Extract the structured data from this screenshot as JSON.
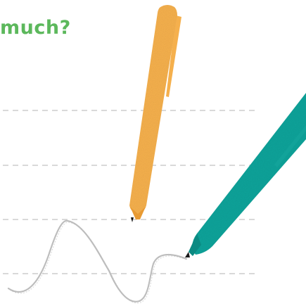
{
  "headline": {
    "text": "much?",
    "color": "#5cb85c"
  },
  "colors": {
    "guide_line": "#d9d9d9",
    "pen_orange": "#f5b04d",
    "pen_orange_dark": "#e89a32",
    "pen_teal": "#12a39a",
    "pen_teal_dark": "#0b8a82",
    "pencil_scribble": "#bdbdbd",
    "pen_tip": "#1a1a1a"
  },
  "icons": {
    "orange_pen": "orange-pen-icon",
    "teal_pen": "teal-pen-icon",
    "scribble": "pencil-scribble"
  }
}
